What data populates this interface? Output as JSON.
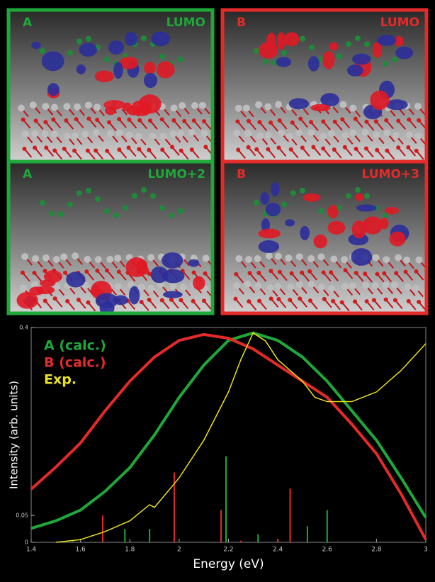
{
  "panels": [
    {
      "label": "A",
      "orbital": "LUMO",
      "color": "#1fa83a"
    },
    {
      "label": "B",
      "orbital": "LUMO",
      "color": "#e52a2a"
    },
    {
      "label": "A",
      "orbital": "LUMO+2",
      "color": "#1fa83a"
    },
    {
      "label": "B",
      "orbital": "LUMO+3",
      "color": "#e52a2a"
    }
  ],
  "chart_data": {
    "type": "line",
    "xlabel": "Energy (eV)",
    "ylabel": "Intensity (arb. units)",
    "xlim": [
      1.4,
      3
    ],
    "ylim": [
      0,
      0.4
    ],
    "xticks": [
      1.4,
      1.6,
      1.8,
      2,
      2.2,
      2.4,
      2.6,
      2.8,
      3
    ],
    "yticks": [
      0,
      0.05,
      0.4
    ],
    "series": [
      {
        "name": "A (calc.)",
        "color": "#1fa83a",
        "x": [
          1.4,
          1.5,
          1.6,
          1.7,
          1.8,
          1.9,
          2.0,
          2.1,
          2.2,
          2.3,
          2.4,
          2.5,
          2.6,
          2.7,
          2.8,
          2.9,
          3.0
        ],
        "values": [
          0.026,
          0.04,
          0.06,
          0.095,
          0.139,
          0.2,
          0.27,
          0.33,
          0.376,
          0.39,
          0.376,
          0.345,
          0.3,
          0.245,
          0.19,
          0.12,
          0.046
        ]
      },
      {
        "name": "B (calc.)",
        "color": "#e52a2a",
        "x": [
          1.4,
          1.5,
          1.6,
          1.7,
          1.8,
          1.9,
          2.0,
          2.1,
          2.2,
          2.3,
          2.4,
          2.5,
          2.6,
          2.7,
          2.8,
          2.9,
          3.0
        ],
        "values": [
          0.099,
          0.14,
          0.185,
          0.245,
          0.3,
          0.345,
          0.376,
          0.387,
          0.38,
          0.36,
          0.33,
          0.3,
          0.27,
          0.22,
          0.165,
          0.09,
          0.005
        ]
      },
      {
        "name": "Exp.",
        "color": "#e8e020",
        "x": [
          1.5,
          1.6,
          1.7,
          1.8,
          1.88,
          1.9,
          2.0,
          2.1,
          2.2,
          2.25,
          2.3,
          2.35,
          2.4,
          2.5,
          2.55,
          2.6,
          2.7,
          2.8,
          2.9,
          3.0
        ],
        "values": [
          0.0,
          0.005,
          0.02,
          0.04,
          0.07,
          0.065,
          0.12,
          0.19,
          0.28,
          0.34,
          0.39,
          0.375,
          0.34,
          0.3,
          0.27,
          0.262,
          0.262,
          0.28,
          0.32,
          0.37
        ]
      }
    ],
    "sticks": [
      {
        "color": "#e52a2a",
        "x": [
          1.69,
          1.98,
          2.17,
          2.25,
          2.4,
          2.45
        ],
        "values": [
          0.05,
          0.13,
          0.06,
          0.003,
          0.005,
          0.1
        ]
      },
      {
        "color": "#1fa83a",
        "x": [
          1.57,
          1.78,
          1.88,
          2.19,
          2.32,
          2.52,
          2.6
        ],
        "values": [
          0.002,
          0.025,
          0.025,
          0.16,
          0.015,
          0.03,
          0.06
        ]
      }
    ]
  }
}
